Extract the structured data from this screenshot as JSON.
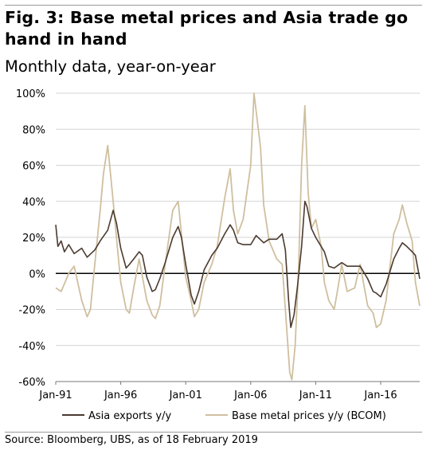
{
  "header": {
    "title": "Fig. 3: Base metal prices and Asia trade go hand in hand",
    "subtitle": "Monthly data, year-on-year"
  },
  "footer": {
    "source": "Source: Bloomberg, UBS, as of 18 February 2019"
  },
  "chart_data": {
    "type": "line",
    "title": "Fig. 3: Base metal prices and Asia trade go hand in hand",
    "subtitle": "Monthly data, year-on-year",
    "xlabel": "",
    "ylabel": "",
    "x_tick_labels": [
      "Jan-91",
      "Jan-96",
      "Jan-01",
      "Jan-06",
      "Jan-11",
      "Jan-16"
    ],
    "y_tick_labels": [
      "100%",
      "80%",
      "60%",
      "40%",
      "20%",
      "0%",
      "-20%",
      "-40%",
      "-60%"
    ],
    "ylim": [
      -60,
      100
    ],
    "xlim": [
      "1991-01",
      "2019-01"
    ],
    "grid": true,
    "legend_position": "bottom",
    "series": [
      {
        "name": "Asia exports y/y",
        "color": "#4a3a30",
        "points": [
          [
            "1991-01",
            27
          ],
          [
            "1991-03",
            15
          ],
          [
            "1991-06",
            18
          ],
          [
            "1991-09",
            12
          ],
          [
            "1992-01",
            16
          ],
          [
            "1992-06",
            11
          ],
          [
            "1993-01",
            14
          ],
          [
            "1993-06",
            9
          ],
          [
            "1994-01",
            13
          ],
          [
            "1994-06",
            18
          ],
          [
            "1995-01",
            24
          ],
          [
            "1995-06",
            35
          ],
          [
            "1995-09",
            28
          ],
          [
            "1996-01",
            14
          ],
          [
            "1996-06",
            3
          ],
          [
            "1996-09",
            5
          ],
          [
            "1997-01",
            8
          ],
          [
            "1997-06",
            12
          ],
          [
            "1997-09",
            10
          ],
          [
            "1998-01",
            -2
          ],
          [
            "1998-06",
            -10
          ],
          [
            "1998-09",
            -9
          ],
          [
            "1999-01",
            -3
          ],
          [
            "1999-06",
            6
          ],
          [
            "2000-01",
            20
          ],
          [
            "2000-06",
            26
          ],
          [
            "2000-09",
            20
          ],
          [
            "2001-01",
            5
          ],
          [
            "2001-06",
            -12
          ],
          [
            "2001-09",
            -17
          ],
          [
            "2002-01",
            -10
          ],
          [
            "2002-06",
            2
          ],
          [
            "2003-01",
            10
          ],
          [
            "2003-06",
            14
          ],
          [
            "2004-01",
            22
          ],
          [
            "2004-06",
            27
          ],
          [
            "2004-09",
            24
          ],
          [
            "2005-01",
            17
          ],
          [
            "2005-06",
            16
          ],
          [
            "2006-01",
            16
          ],
          [
            "2006-06",
            21
          ],
          [
            "2007-01",
            17
          ],
          [
            "2007-06",
            19
          ],
          [
            "2008-01",
            19
          ],
          [
            "2008-06",
            22
          ],
          [
            "2008-09",
            13
          ],
          [
            "2008-12",
            -15
          ],
          [
            "2009-02",
            -30
          ],
          [
            "2009-05",
            -23
          ],
          [
            "2009-08",
            -8
          ],
          [
            "2009-12",
            15
          ],
          [
            "2010-03",
            40
          ],
          [
            "2010-05",
            37
          ],
          [
            "2010-09",
            25
          ],
          [
            "2011-01",
            20
          ],
          [
            "2011-06",
            15
          ],
          [
            "2011-09",
            12
          ],
          [
            "2012-01",
            4
          ],
          [
            "2012-06",
            3
          ],
          [
            "2013-01",
            6
          ],
          [
            "2013-06",
            4
          ],
          [
            "2014-01",
            4
          ],
          [
            "2014-06",
            4
          ],
          [
            "2015-01",
            -3
          ],
          [
            "2015-06",
            -10
          ],
          [
            "2015-09",
            -11
          ],
          [
            "2016-01",
            -13
          ],
          [
            "2016-06",
            -6
          ],
          [
            "2017-01",
            8
          ],
          [
            "2017-06",
            14
          ],
          [
            "2017-09",
            17
          ],
          [
            "2018-01",
            15
          ],
          [
            "2018-06",
            12
          ],
          [
            "2018-09",
            10
          ],
          [
            "2019-01",
            -3
          ]
        ]
      },
      {
        "name": "Base metal prices y/y (BCOM)",
        "color": "#cfbf9f",
        "points": [
          [
            "1991-01",
            -8
          ],
          [
            "1991-06",
            -10
          ],
          [
            "1992-01",
            0
          ],
          [
            "1992-06",
            4
          ],
          [
            "1993-01",
            -15
          ],
          [
            "1993-06",
            -24
          ],
          [
            "1993-09",
            -20
          ],
          [
            "1994-01",
            5
          ],
          [
            "1994-06",
            35
          ],
          [
            "1994-09",
            55
          ],
          [
            "1995-01",
            71
          ],
          [
            "1995-06",
            40
          ],
          [
            "1995-09",
            20
          ],
          [
            "1996-01",
            -5
          ],
          [
            "1996-06",
            -20
          ],
          [
            "1996-09",
            -22
          ],
          [
            "1997-01",
            -8
          ],
          [
            "1997-06",
            8
          ],
          [
            "1998-01",
            -15
          ],
          [
            "1998-06",
            -23
          ],
          [
            "1998-09",
            -25
          ],
          [
            "1999-01",
            -18
          ],
          [
            "1999-06",
            5
          ],
          [
            "2000-01",
            35
          ],
          [
            "2000-06",
            40
          ],
          [
            "2000-09",
            22
          ],
          [
            "2001-01",
            -2
          ],
          [
            "2001-06",
            -15
          ],
          [
            "2001-09",
            -24
          ],
          [
            "2002-01",
            -20
          ],
          [
            "2002-06",
            -5
          ],
          [
            "2003-01",
            5
          ],
          [
            "2003-06",
            15
          ],
          [
            "2004-01",
            42
          ],
          [
            "2004-06",
            58
          ],
          [
            "2004-09",
            35
          ],
          [
            "2005-01",
            22
          ],
          [
            "2005-06",
            30
          ],
          [
            "2006-01",
            60
          ],
          [
            "2006-04",
            100
          ],
          [
            "2006-07",
            85
          ],
          [
            "2006-10",
            70
          ],
          [
            "2007-01",
            38
          ],
          [
            "2007-06",
            18
          ],
          [
            "2008-01",
            8
          ],
          [
            "2008-06",
            5
          ],
          [
            "2008-09",
            -20
          ],
          [
            "2009-01",
            -55
          ],
          [
            "2009-03",
            -59
          ],
          [
            "2009-06",
            -40
          ],
          [
            "2009-09",
            0
          ],
          [
            "2009-12",
            60
          ],
          [
            "2010-03",
            93
          ],
          [
            "2010-06",
            45
          ],
          [
            "2010-09",
            25
          ],
          [
            "2011-01",
            30
          ],
          [
            "2011-06",
            15
          ],
          [
            "2011-09",
            -5
          ],
          [
            "2012-01",
            -15
          ],
          [
            "2012-06",
            -20
          ],
          [
            "2012-09",
            -10
          ],
          [
            "2013-01",
            5
          ],
          [
            "2013-06",
            -10
          ],
          [
            "2014-01",
            -8
          ],
          [
            "2014-06",
            5
          ],
          [
            "2014-09",
            -5
          ],
          [
            "2015-01",
            -18
          ],
          [
            "2015-06",
            -22
          ],
          [
            "2015-09",
            -30
          ],
          [
            "2016-01",
            -28
          ],
          [
            "2016-06",
            -15
          ],
          [
            "2017-01",
            22
          ],
          [
            "2017-06",
            30
          ],
          [
            "2017-09",
            38
          ],
          [
            "2018-01",
            28
          ],
          [
            "2018-06",
            18
          ],
          [
            "2018-09",
            -5
          ],
          [
            "2019-01",
            -18
          ]
        ]
      }
    ]
  }
}
